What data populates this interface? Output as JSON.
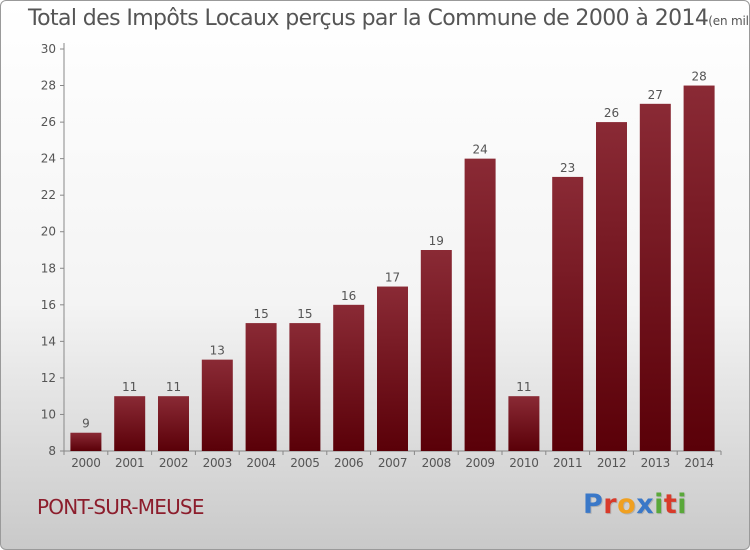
{
  "title": {
    "main": "Total des Impôts Locaux perçus par la Commune de 2000 à 2014",
    "sub": "(en milliers d'€)"
  },
  "commune": "PONT-SUR-MEUSE",
  "logo": {
    "letters": [
      "P",
      "r",
      "o",
      "x",
      "i",
      "t",
      "i"
    ],
    "colors": [
      "#3a78c8",
      "#d83a2a",
      "#f0a020",
      "#3a78c8",
      "#5aa83a",
      "#d83a2a",
      "#5aa83a"
    ]
  },
  "colors": {
    "bar_top": "#8a2a35",
    "bar_bottom": "#5a0008",
    "text": "#555555"
  },
  "chart_data": {
    "type": "bar",
    "categories": [
      "2000",
      "2001",
      "2002",
      "2003",
      "2004",
      "2005",
      "2006",
      "2007",
      "2008",
      "2009",
      "2010",
      "2011",
      "2012",
      "2013",
      "2014"
    ],
    "values": [
      9,
      11,
      11,
      13,
      15,
      15,
      16,
      17,
      19,
      24,
      11,
      23,
      26,
      27,
      28
    ],
    "ylim": [
      8,
      30
    ],
    "yticks": [
      8,
      10,
      12,
      14,
      16,
      18,
      20,
      22,
      24,
      26,
      28,
      30
    ],
    "grid": false
  }
}
